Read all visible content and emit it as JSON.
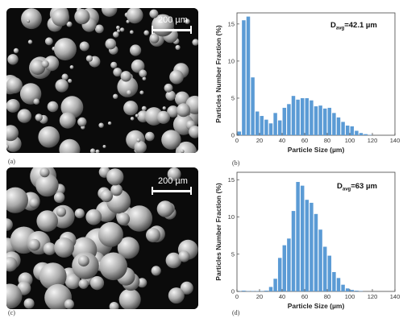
{
  "panels": {
    "a": {
      "label": "(a)",
      "scalebar": "200 µm"
    },
    "b": {
      "label": "(b)"
    },
    "c": {
      "label": "(c)",
      "scalebar": "200 µm"
    },
    "d": {
      "label": "(d)"
    }
  },
  "chart_data": [
    {
      "type": "bar",
      "panel": "b",
      "xlabel": "Particle Size (µm)",
      "ylabel": "Particles Number Fraction (%)",
      "annotation": {
        "main": "D",
        "sub": "avg",
        "value": "=42.1 µm"
      },
      "xlim": [
        0,
        140
      ],
      "ylim": [
        0,
        16.5
      ],
      "xticks": [
        0,
        20,
        40,
        60,
        80,
        100,
        120,
        140
      ],
      "yticks": [
        0,
        5,
        10,
        15
      ],
      "color": "#5b9bd5",
      "bin_width": 4,
      "x": [
        2,
        6,
        10,
        14,
        18,
        22,
        26,
        30,
        34,
        38,
        42,
        46,
        50,
        54,
        58,
        62,
        66,
        70,
        74,
        78,
        82,
        86,
        90,
        94,
        98,
        102,
        106,
        110,
        114,
        118
      ],
      "values": [
        0.5,
        15.5,
        16.0,
        7.8,
        3.2,
        2.6,
        2.1,
        1.6,
        3.0,
        2.0,
        3.7,
        4.2,
        5.3,
        4.8,
        5.0,
        5.0,
        4.7,
        3.9,
        4.0,
        3.6,
        3.7,
        3.0,
        2.4,
        1.8,
        1.3,
        1.2,
        0.6,
        0.3,
        0.15,
        0.05
      ]
    },
    {
      "type": "bar",
      "panel": "d",
      "xlabel": "Particle Size (µm)",
      "ylabel": "Particles Number Fraction (%)",
      "annotation": {
        "main": "D",
        "sub": "avg",
        "value": "=63 µm"
      },
      "xlim": [
        0,
        140
      ],
      "ylim": [
        0,
        16
      ],
      "xticks": [
        0,
        20,
        40,
        60,
        80,
        100,
        120,
        140
      ],
      "yticks": [
        0,
        5,
        10,
        15
      ],
      "color": "#5b9bd5",
      "bin_width": 4,
      "x": [
        2,
        6,
        10,
        14,
        18,
        22,
        26,
        30,
        34,
        38,
        42,
        46,
        50,
        54,
        58,
        62,
        66,
        70,
        74,
        78,
        82,
        86,
        90,
        94,
        98,
        102,
        106,
        110
      ],
      "values": [
        0.05,
        0.1,
        0.05,
        0.05,
        0.05,
        0.05,
        0.1,
        0.6,
        1.7,
        4.5,
        6.2,
        7.1,
        10.8,
        14.7,
        14.2,
        12.3,
        11.9,
        10.4,
        8.3,
        6.0,
        4.8,
        2.6,
        1.8,
        0.9,
        0.4,
        0.2,
        0.1,
        0.05
      ]
    }
  ]
}
